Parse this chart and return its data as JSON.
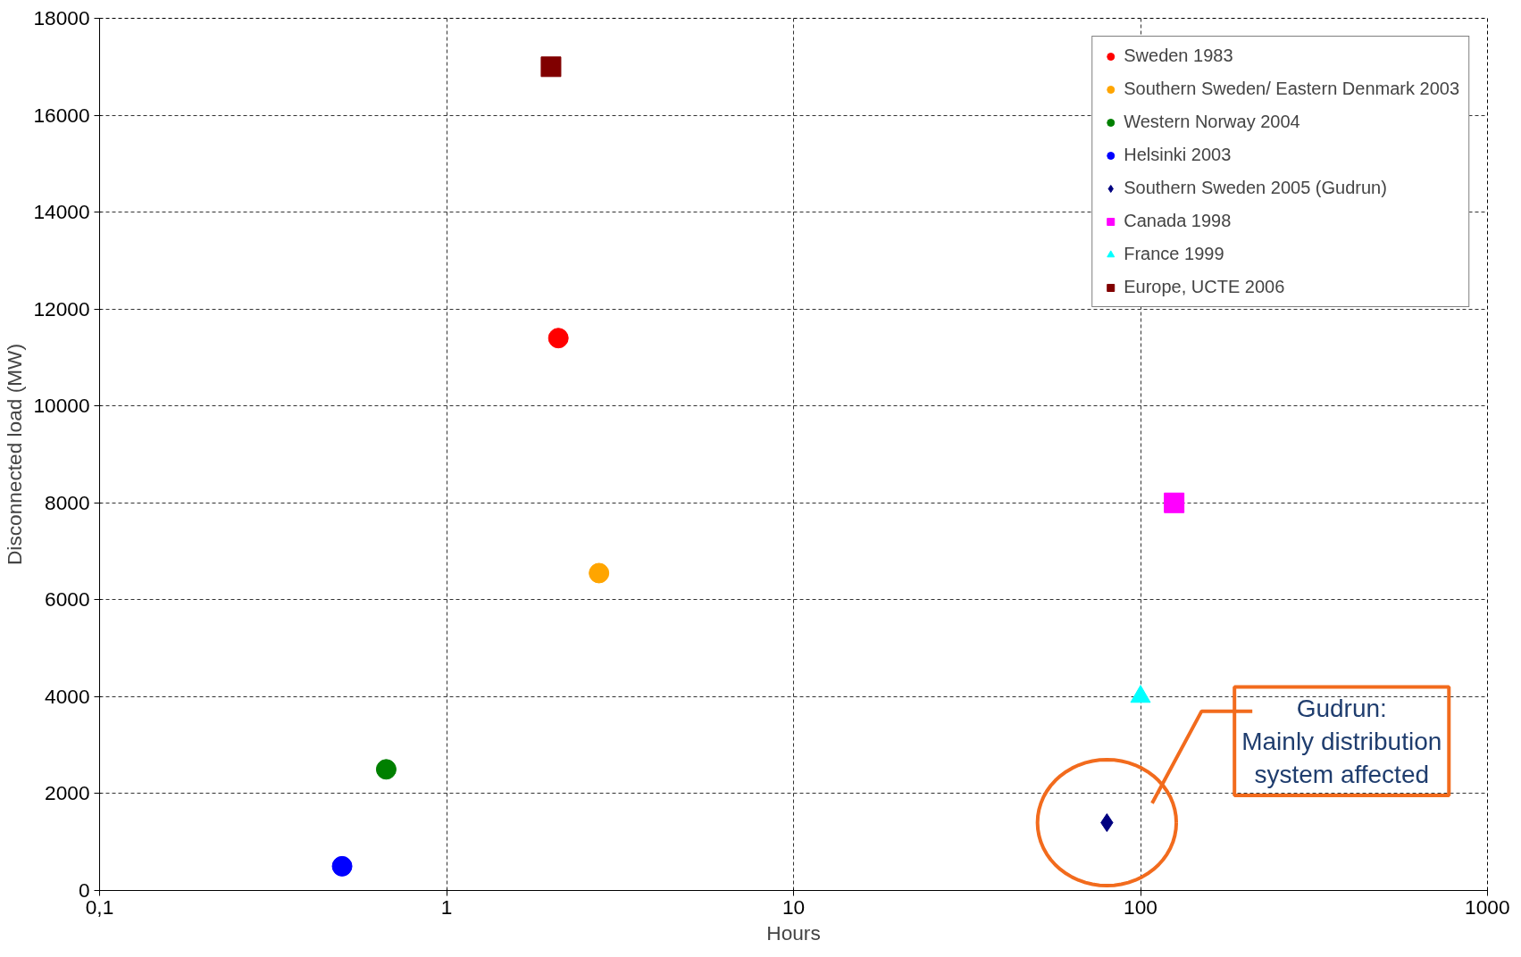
{
  "chart_data": {
    "type": "scatter",
    "xlabel": "Hours",
    "ylabel": "Disconnected load (MW)",
    "log": "x",
    "xlim": [
      0.1,
      1000
    ],
    "ylim": [
      0,
      18000
    ],
    "xticks": [
      {
        "value": 0.1,
        "label": "0,1"
      },
      1,
      10,
      100,
      1000
    ],
    "yticks": [
      0,
      2000,
      4000,
      6000,
      8000,
      10000,
      12000,
      14000,
      16000,
      18000
    ],
    "grid": true,
    "legend": "top right",
    "series": [
      {
        "name": "Sweden 1983",
        "color": "#ff0000",
        "marker": "circle",
        "x": [
          2.1
        ],
        "values": [
          11400
        ]
      },
      {
        "name": "Southern Sweden/ Eastern Denmark 2003",
        "color": "#ffa500",
        "marker": "circle",
        "x": [
          2.75
        ],
        "values": [
          6550
        ]
      },
      {
        "name": "Western Norway 2004",
        "color": "#008000",
        "marker": "circle",
        "x": [
          0.67
        ],
        "values": [
          2500
        ]
      },
      {
        "name": "Helsinki 2003",
        "color": "#0000ff",
        "marker": "circle",
        "x": [
          0.5
        ],
        "values": [
          500
        ]
      },
      {
        "name": "Southern Sweden 2005 (Gudrun)",
        "color": "#000080",
        "marker": "diamond",
        "x": [
          80
        ],
        "values": [
          1400
        ]
      },
      {
        "name": "Canada 1998",
        "color": "#ff00ff",
        "marker": "square",
        "x": [
          125
        ],
        "values": [
          8000
        ]
      },
      {
        "name": "France 1999",
        "color": "#00ffff",
        "marker": "triangle",
        "x": [
          100
        ],
        "values": [
          4000
        ]
      },
      {
        "name": "Europe, UCTE 2006",
        "color": "#800000",
        "marker": "square",
        "x": [
          2
        ],
        "values": [
          17000
        ]
      }
    ],
    "annotations": [
      "Gudrun:\nMainly distribution\nsystem affected"
    ]
  }
}
